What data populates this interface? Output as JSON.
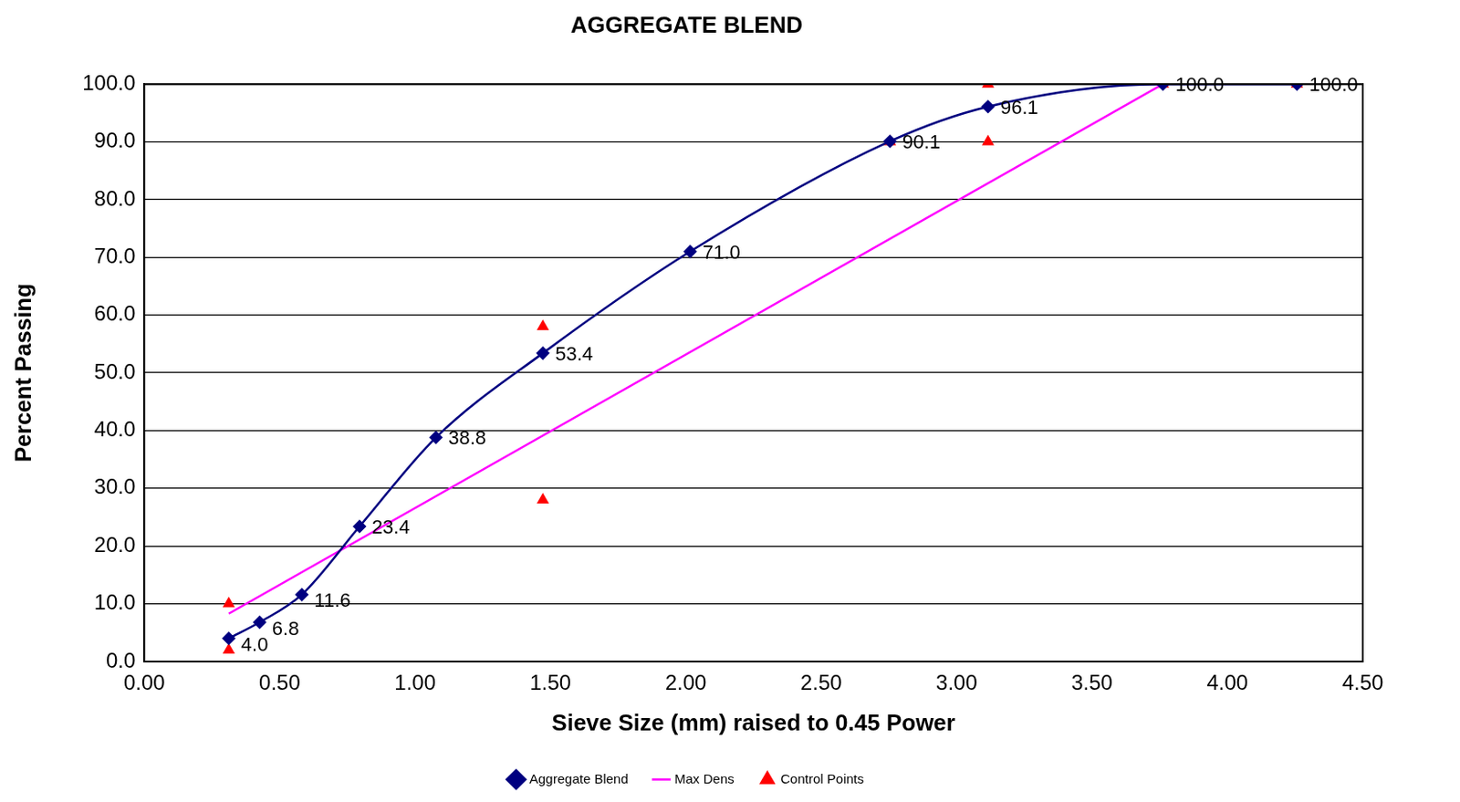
{
  "chart_data": {
    "type": "line",
    "title": "AGGREGATE BLEND",
    "x_label": "Sieve Size (mm) raised to 0.45 Power",
    "y_label": "Percent Passing",
    "xlim": [
      0,
      4.5
    ],
    "xticks": [
      {
        "value": 0,
        "label": "0.00"
      },
      {
        "value": 0.5,
        "label": "0.50"
      },
      {
        "value": 1,
        "label": "1.00"
      },
      {
        "value": 1.5,
        "label": "1.50"
      },
      {
        "value": 2,
        "label": "2.00"
      },
      {
        "value": 2.5,
        "label": "2.50"
      },
      {
        "value": 3,
        "label": "3.00"
      },
      {
        "value": 3.5,
        "label": "3.50"
      },
      {
        "value": 4,
        "label": "4.00"
      },
      {
        "value": 4.5,
        "label": "4.50"
      }
    ],
    "ylim": [
      0,
      100
    ],
    "yticks": [
      {
        "value": 0,
        "label": "0.0"
      },
      {
        "value": 10,
        "label": "10.0"
      },
      {
        "value": 20,
        "label": "20.0"
      },
      {
        "value": 30,
        "label": "30.0"
      },
      {
        "value": 40,
        "label": "40.0"
      },
      {
        "value": 50,
        "label": "50.0"
      },
      {
        "value": 60,
        "label": "60.0"
      },
      {
        "value": 70,
        "label": "70.0"
      },
      {
        "value": 80,
        "label": "80.0"
      },
      {
        "value": 90,
        "label": "90.0"
      },
      {
        "value": 100,
        "label": "100.0"
      }
    ],
    "grid": true,
    "legend": "bottom",
    "series": [
      {
        "name": "Aggregate Blend",
        "type": "line",
        "color": "#000080",
        "marker": "diamond",
        "line_style": "solid",
        "data_labels": true,
        "x": [
          0.312,
          0.426,
          0.582,
          0.795,
          1.077,
          1.472,
          2.016,
          2.754,
          3.116,
          3.762,
          4.257
        ],
        "values": [
          4.0,
          6.8,
          11.6,
          23.4,
          38.8,
          53.4,
          71.0,
          90.1,
          96.1,
          100.0,
          100.0
        ],
        "value_labels": [
          "4.0",
          "6.8",
          "11.6",
          "23.4",
          "38.8",
          "53.4",
          "71.0",
          "90.1",
          "96.1",
          "100.0",
          "100.0"
        ]
      },
      {
        "name": "Max Dens",
        "type": "line",
        "color": "#ff00ff",
        "marker": "none",
        "line_style": "solid",
        "x": [
          0.312,
          3.762
        ],
        "values": [
          8.3,
          100
        ]
      },
      {
        "name": "Control Points",
        "type": "scatter",
        "color": "#ff0000",
        "marker": "triangle",
        "x": [
          0.312,
          0.312,
          1.472,
          1.472,
          2.754,
          3.116,
          3.116,
          3.762,
          4.257
        ],
        "values": [
          2,
          10,
          28,
          58,
          90,
          90,
          100,
          100,
          100
        ]
      }
    ]
  }
}
